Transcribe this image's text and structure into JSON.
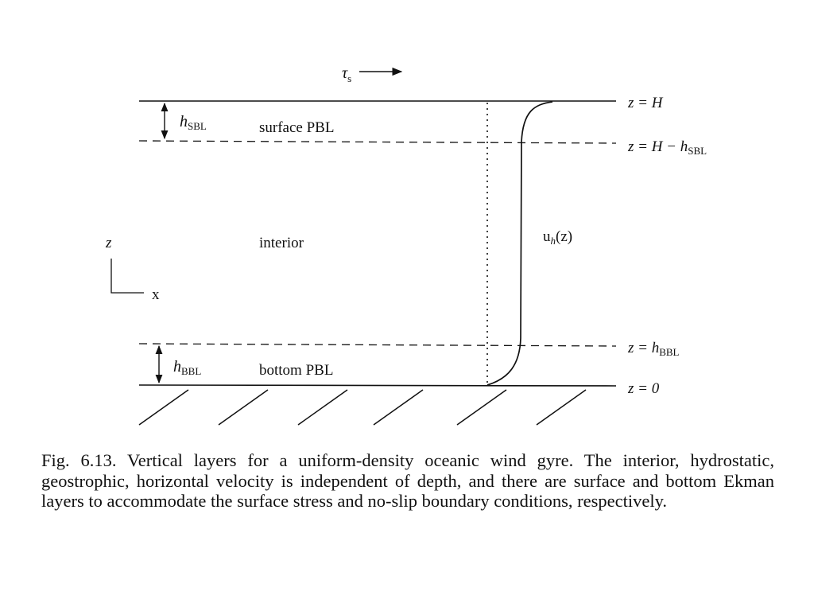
{
  "diagram": {
    "stress_label": {
      "sym": "τ",
      "sub": "s"
    },
    "thickness_labels": {
      "surface": {
        "sym": "h",
        "sub": "SBL"
      },
      "bottom": {
        "sym": "h",
        "sub": "BBL"
      }
    },
    "layer_labels": {
      "surface": "surface PBL",
      "interior": "interior",
      "bottom": "bottom PBL"
    },
    "axes": {
      "vertical": "z",
      "horizontal": "x"
    },
    "profile_label": {
      "u": "u",
      "sub": "h",
      "arg": "(z)"
    },
    "levels": {
      "top": "z = H",
      "surface_base_prefix": "z = H − h",
      "surface_base_sub": "SBL",
      "bottom_top_prefix": "z = h",
      "bottom_top_sub": "BBL",
      "bottom": "z = 0"
    }
  },
  "caption": "Fig. 6.13. Vertical layers for a uniform-density oceanic wind gyre. The interior, hydrostatic, geostrophic, horizontal velocity is independent of depth, and there are surface and bottom Ekman layers to accommodate the surface stress and no-slip boundary conditions, respectively."
}
